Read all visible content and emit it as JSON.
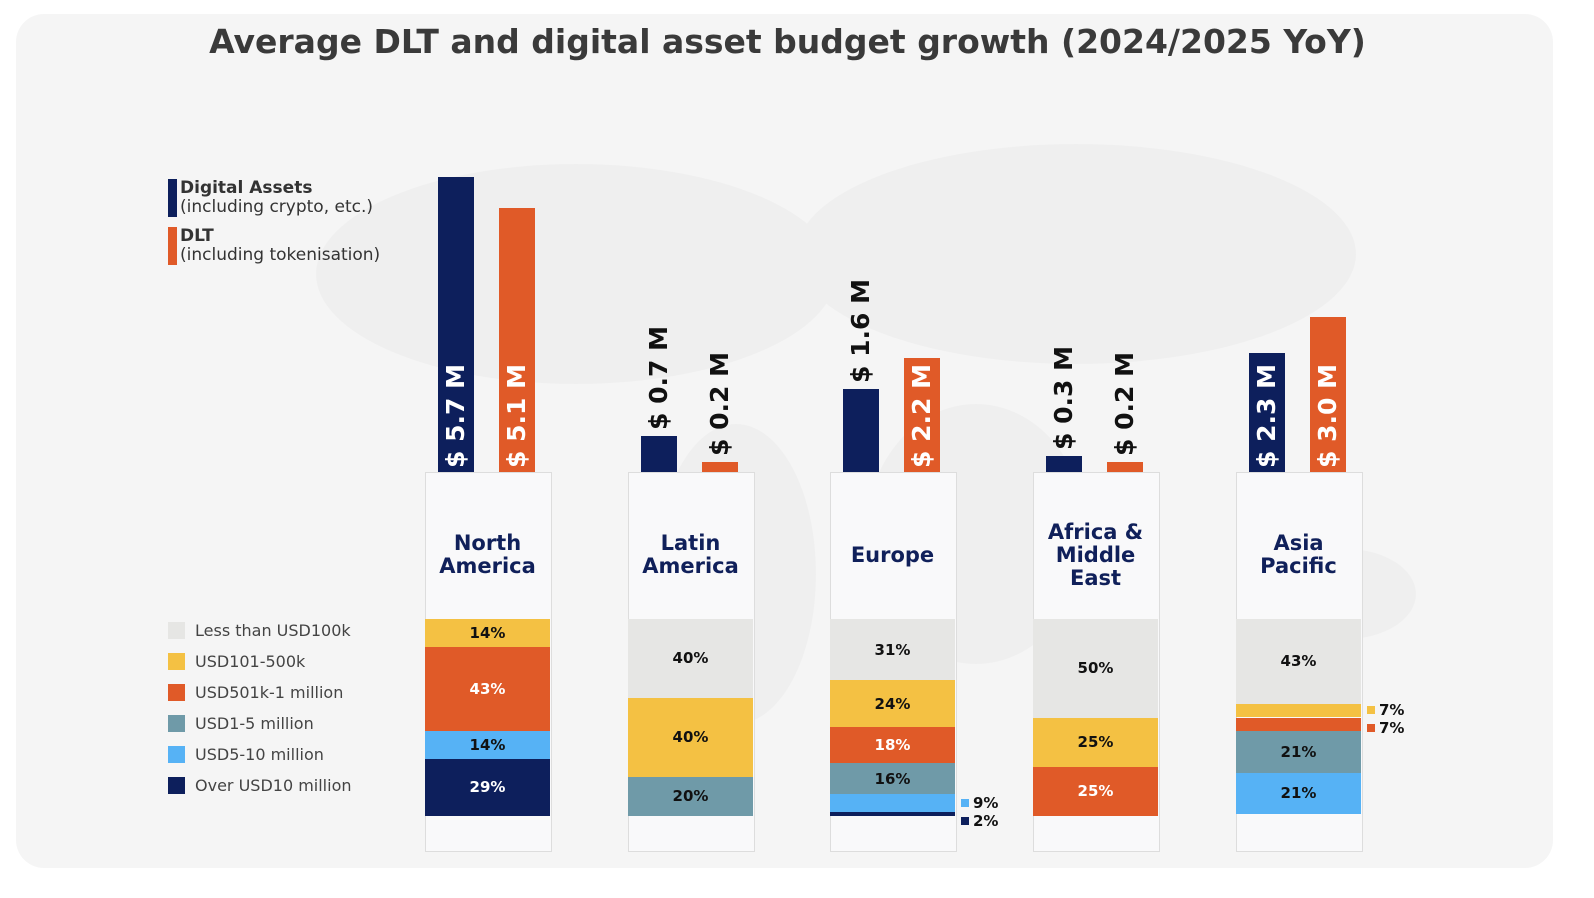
{
  "title": "Average DLT and digital asset budget growth (2024/2025 YoY)",
  "colors": {
    "digital_assets": "#0d1f5c",
    "dlt": "#e05a28",
    "lt100k": "#e6e6e4",
    "k101_500": "#f4c143",
    "k501_1m": "#e05a28",
    "m1_5": "#6f9aa8",
    "m5_10": "#56b2f5",
    "over10m": "#0d1f5c"
  },
  "chart_data": [
    {
      "type": "bar",
      "title": "Average DLT and digital asset budget growth (2024/2025 YoY)",
      "categories": [
        "North America",
        "Latin America",
        "Europe",
        "Africa & Middle East",
        "Asia Pacific"
      ],
      "unit": "USD million",
      "legend_placement": "top-left",
      "series": [
        {
          "name": "Digital Assets",
          "sub": "(including crypto, etc.)",
          "values": [
            5.7,
            0.7,
            1.6,
            0.3,
            2.3
          ],
          "labels": [
            "$ 5.7 M",
            "$ 0.7 M",
            "$ 1.6 M",
            "$ 0.3 M",
            "$ 2.3 M"
          ]
        },
        {
          "name": "DLT",
          "sub": "(including tokenisation)",
          "values": [
            5.1,
            0.2,
            2.2,
            0.2,
            3.0
          ],
          "labels": [
            "$ 5.1 M",
            "$ 0.2 M",
            "$ 2.2 M",
            "$ 0.2 M",
            "$ 3.0 M"
          ]
        }
      ]
    },
    {
      "type": "bar",
      "stacked": true,
      "categories": [
        "North America",
        "Latin America",
        "Europe",
        "Africa & Middle East",
        "Asia Pacific"
      ],
      "legend_placement": "left",
      "series": [
        {
          "name": "Less than USD100k",
          "values": [
            0,
            40,
            31,
            50,
            43
          ]
        },
        {
          "name": "USD101-500k",
          "values": [
            14,
            40,
            24,
            25,
            7
          ]
        },
        {
          "name": "USD501k-1 million",
          "values": [
            43,
            0,
            18,
            25,
            7
          ]
        },
        {
          "name": "USD1-5 million",
          "values": [
            0,
            20,
            16,
            0,
            21
          ]
        },
        {
          "name": "USD5-10 million",
          "values": [
            14,
            0,
            9,
            0,
            21
          ]
        },
        {
          "name": "Over USD10 million",
          "values": [
            29,
            0,
            2,
            0,
            0
          ]
        }
      ]
    }
  ],
  "regions": [
    {
      "label": "North America"
    },
    {
      "label": "Latin America"
    },
    {
      "label": "Europe"
    },
    {
      "label": "Africa & Middle East"
    },
    {
      "label": "Asia Pacific"
    }
  ]
}
